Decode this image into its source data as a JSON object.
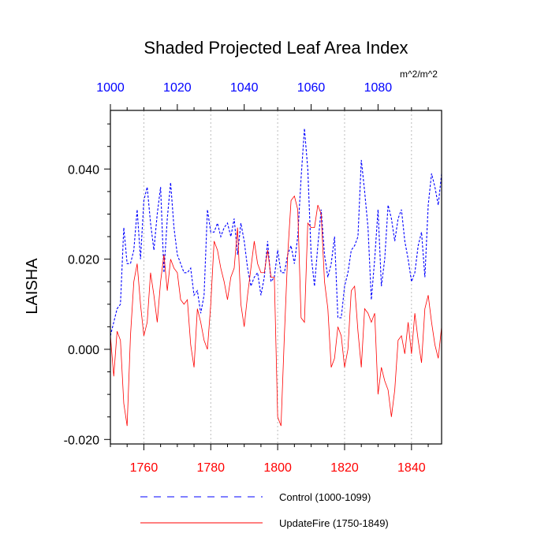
{
  "chart_data": {
    "type": "line",
    "title": "Shaded Projected Leaf Area Index",
    "ylabel": "LAISHA",
    "xlabel": "",
    "units": "m^2/m^2",
    "ylim": [
      -0.021,
      0.053
    ],
    "yticks": [
      "0.040",
      "0.020",
      "0.000",
      "-0.020"
    ],
    "ytick_values": [
      0.04,
      0.02,
      0.0,
      -0.02
    ],
    "grid": "vertical dotted lines at bottom axis ticks",
    "bottom_axis": {
      "color": "#ff0000",
      "range": [
        1750,
        1849
      ],
      "ticks": [
        1760,
        1780,
        1800,
        1820,
        1840
      ],
      "tick_labels": [
        "1760",
        "1780",
        "1800",
        "1820",
        "1840"
      ]
    },
    "top_axis": {
      "color": "#0000ff",
      "range": [
        1000,
        1099
      ],
      "ticks": [
        1000,
        1020,
        1040,
        1060,
        1080
      ],
      "tick_labels": [
        "1000",
        "1020",
        "1040",
        "1060",
        "1080"
      ]
    },
    "legend_position": "bottom",
    "series": [
      {
        "name": "Control (1000-1099)",
        "color": "#0000ff",
        "dash": "dashed",
        "axis": "top",
        "x_start": 1000,
        "values": [
          0.003,
          0.006,
          0.009,
          0.01,
          0.027,
          0.019,
          0.019,
          0.022,
          0.031,
          0.02,
          0.033,
          0.036,
          0.028,
          0.022,
          0.03,
          0.036,
          0.017,
          0.029,
          0.037,
          0.027,
          0.021,
          0.019,
          0.017,
          0.017,
          0.018,
          0.012,
          0.013,
          0.008,
          0.012,
          0.031,
          0.026,
          0.026,
          0.028,
          0.025,
          0.027,
          0.028,
          0.025,
          0.029,
          0.021,
          0.028,
          0.024,
          0.018,
          0.014,
          0.016,
          0.017,
          0.012,
          0.016,
          0.024,
          0.015,
          0.016,
          0.022,
          0.017,
          0.017,
          0.021,
          0.023,
          0.019,
          0.025,
          0.038,
          0.049,
          0.04,
          0.021,
          0.014,
          0.023,
          0.031,
          0.021,
          0.016,
          0.019,
          0.025,
          0.007,
          0.007,
          0.014,
          0.017,
          0.022,
          0.023,
          0.025,
          0.042,
          0.035,
          0.027,
          0.011,
          0.02,
          0.031,
          0.014,
          0.02,
          0.032,
          0.029,
          0.024,
          0.029,
          0.031,
          0.024,
          0.02,
          0.015,
          0.017,
          0.023,
          0.026,
          0.016,
          0.032,
          0.039,
          0.036,
          0.032,
          0.039
        ]
      },
      {
        "name": "UpdateFire (1750-1849)",
        "color": "#ff0000",
        "dash": "solid",
        "axis": "bottom",
        "x_start": 1750,
        "values": [
          0.003,
          -0.006,
          0.004,
          0.002,
          -0.012,
          -0.017,
          0.003,
          0.015,
          0.019,
          0.01,
          0.003,
          0.006,
          0.017,
          0.012,
          0.006,
          0.015,
          0.021,
          0.013,
          0.02,
          0.018,
          0.017,
          0.011,
          0.01,
          0.011,
          0.001,
          -0.004,
          0.009,
          0.006,
          0.002,
          0.0,
          0.01,
          0.024,
          0.022,
          0.018,
          0.015,
          0.011,
          0.016,
          0.018,
          0.027,
          0.01,
          0.005,
          0.012,
          0.018,
          0.024,
          0.019,
          0.017,
          0.017,
          0.022,
          0.016,
          0.016,
          -0.015,
          -0.017,
          0.003,
          0.021,
          0.033,
          0.034,
          0.031,
          0.007,
          0.006,
          0.028,
          0.027,
          0.027,
          0.032,
          0.03,
          0.015,
          0.009,
          -0.004,
          -0.002,
          0.005,
          0.003,
          -0.004,
          0.0,
          0.013,
          0.014,
          0.004,
          -0.004,
          0.009,
          0.008,
          0.006,
          0.008,
          -0.01,
          -0.004,
          -0.007,
          -0.009,
          -0.015,
          -0.009,
          0.002,
          0.003,
          -0.001,
          0.006,
          -0.001,
          0.008,
          0.002,
          -0.003,
          0.009,
          0.012,
          0.006,
          0.001,
          -0.002,
          0.005
        ]
      }
    ]
  }
}
